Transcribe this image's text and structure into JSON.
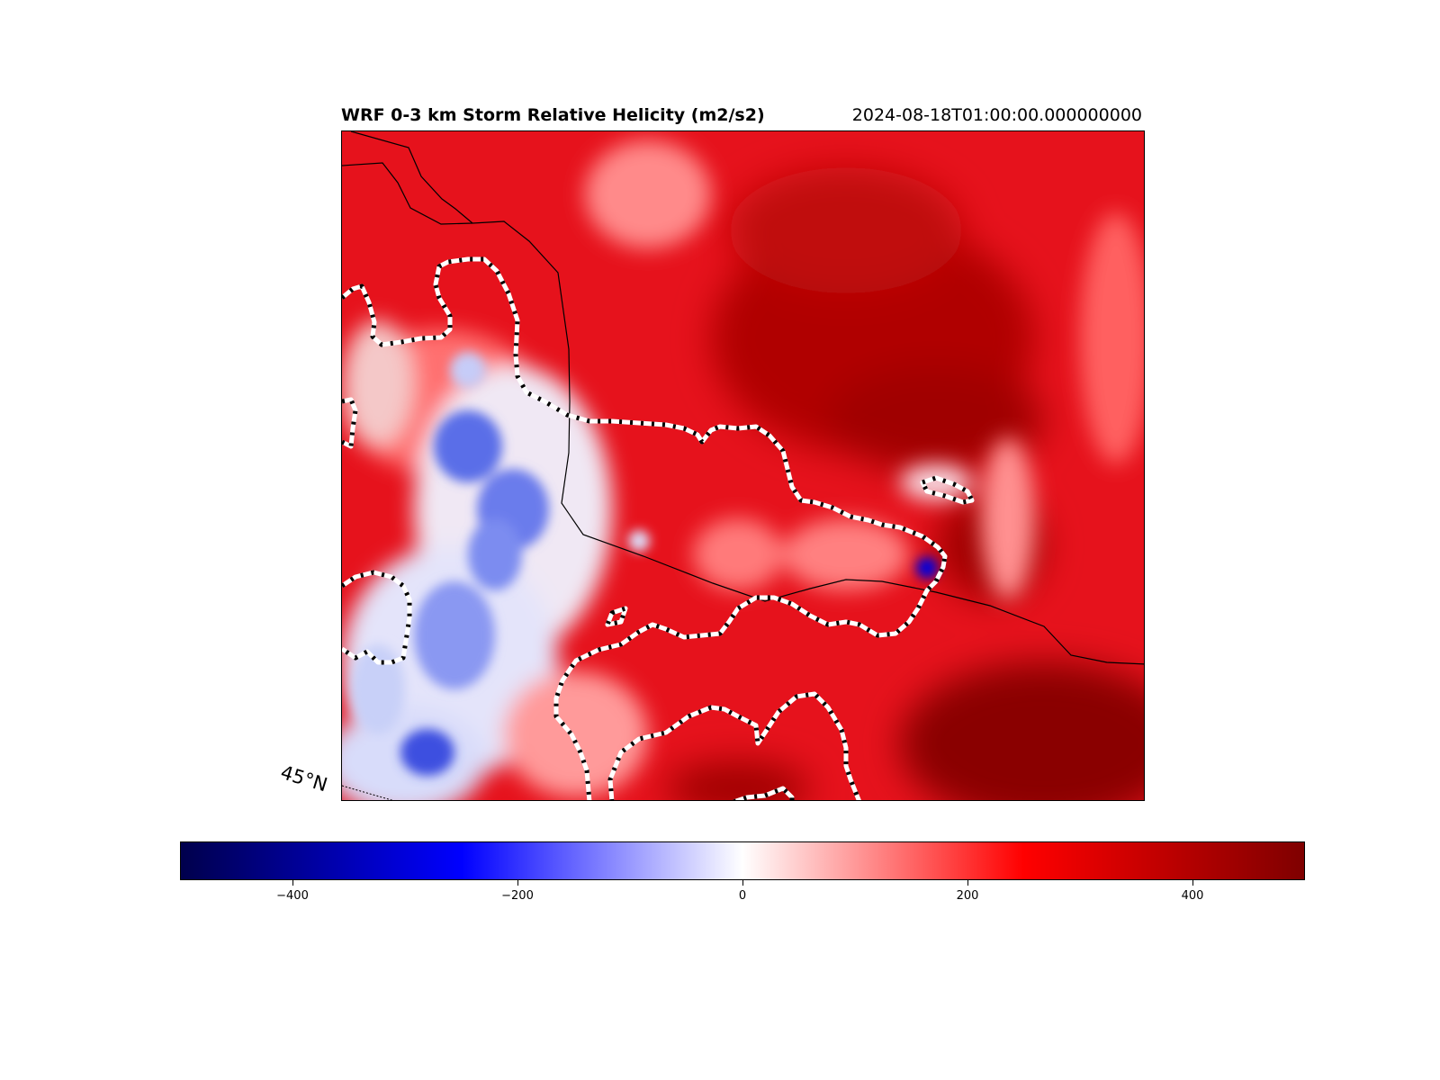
{
  "title": "WRF 0-3 km Storm Relative Helicity (m2/s2)",
  "valid_time": "2024-08-18T01:00:00.000000000",
  "latitude_label": "45°N",
  "colorbar": {
    "colormap": "seismic",
    "vmin": -500,
    "vmax": 500,
    "ticks": [
      {
        "value": -400,
        "label": "−400"
      },
      {
        "value": -200,
        "label": "−200"
      },
      {
        "value": 0,
        "label": "0"
      },
      {
        "value": 200,
        "label": "200"
      },
      {
        "value": 400,
        "label": "400"
      }
    ],
    "stops": [
      "#00004c",
      "#0000ff",
      "#ffffff",
      "#ff0000",
      "#7f0000"
    ]
  },
  "contour": {
    "style": "white-black dashed",
    "level_note": ""
  },
  "colors": {
    "field_base": "#e6101a",
    "high": "#a80000",
    "low": "#5c6ee8",
    "border_lines": "#000000"
  }
}
